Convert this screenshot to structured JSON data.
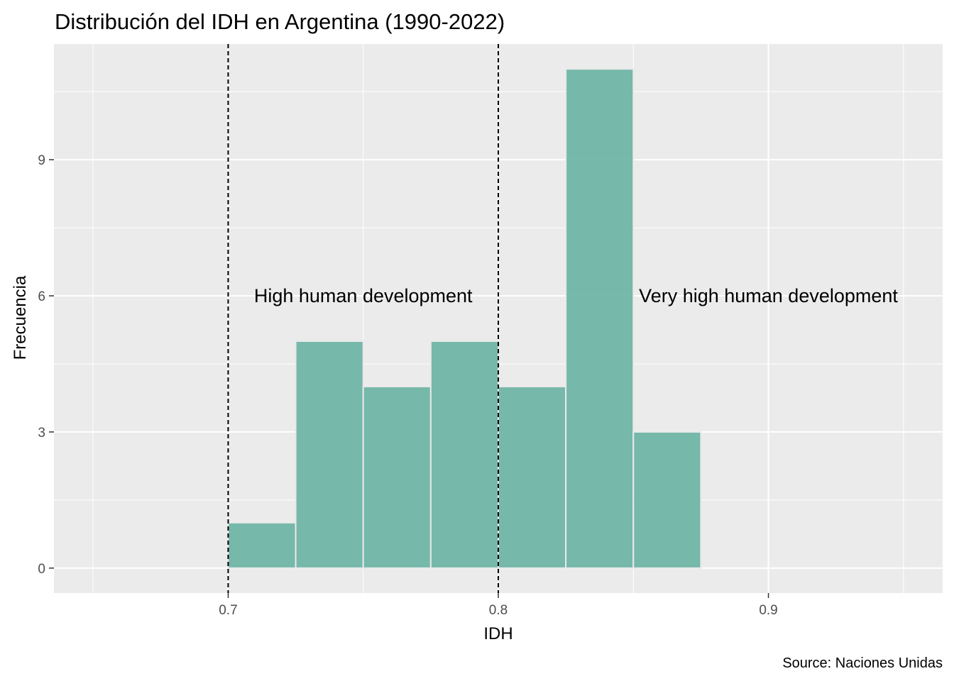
{
  "chart_data": {
    "type": "bar",
    "title": "Distribución del IDH en Argentina (1990-2022)",
    "xlabel": "IDH",
    "ylabel": "Frecuencia",
    "caption": "Source: Naciones Unidas",
    "bins": [
      {
        "x0": 0.7,
        "x1": 0.725,
        "count": 1
      },
      {
        "x0": 0.725,
        "x1": 0.75,
        "count": 5
      },
      {
        "x0": 0.75,
        "x1": 0.775,
        "count": 4
      },
      {
        "x0": 0.775,
        "x1": 0.8,
        "count": 5
      },
      {
        "x0": 0.8,
        "x1": 0.825,
        "count": 4
      },
      {
        "x0": 0.825,
        "x1": 0.85,
        "count": 11
      },
      {
        "x0": 0.85,
        "x1": 0.875,
        "count": 3
      }
    ],
    "xlim": [
      0.6355,
      0.9645
    ],
    "ylim": [
      -0.55,
      11.55
    ],
    "x_ticks": [
      0.7,
      0.8,
      0.9
    ],
    "x_tick_labels": [
      "0.7",
      "0.8",
      "0.9"
    ],
    "x_minor": [
      0.65,
      0.75,
      0.85,
      0.95
    ],
    "y_ticks": [
      0,
      3,
      6,
      9
    ],
    "y_tick_labels": [
      "0",
      "3",
      "6",
      "9"
    ],
    "y_minor": [
      1.5,
      4.5,
      7.5,
      10.5
    ],
    "reference_lines": [
      0.7,
      0.8
    ],
    "annotations": [
      {
        "text": "High human development",
        "x": 0.75,
        "y": 6
      },
      {
        "text": "Very high human development",
        "x": 0.9,
        "y": 6
      }
    ],
    "grid": true,
    "legend": "none",
    "colors": {
      "bar_fill": "#69b3a2",
      "bar_stroke": "#e9e9e9",
      "panel_bg": "#ebebeb",
      "grid": "#ffffff",
      "reference_line": "#000000",
      "text": "#000000",
      "tick_text": "#4d4d4d"
    }
  }
}
